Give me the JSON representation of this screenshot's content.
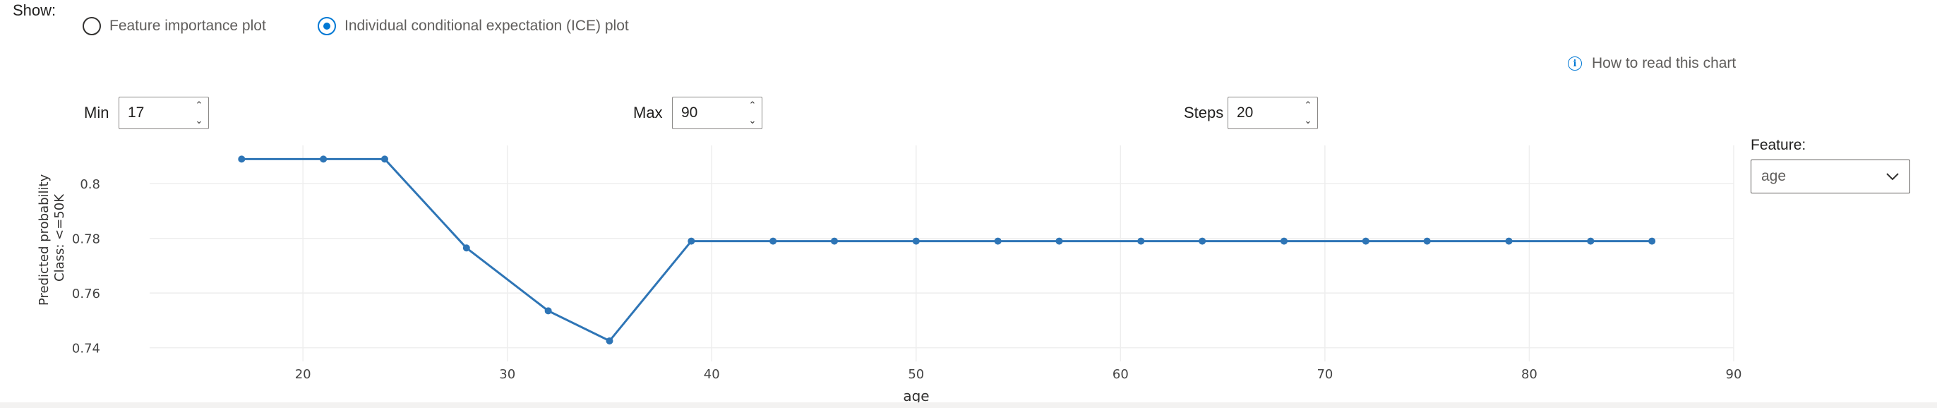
{
  "show": {
    "label": "Show:",
    "options": [
      {
        "label": "Feature importance plot",
        "checked": false
      },
      {
        "label": "Individual conditional expectation (ICE) plot",
        "checked": true
      }
    ]
  },
  "help_link": {
    "label": "How to read this chart",
    "icon": "info-icon"
  },
  "controls": {
    "min": {
      "label": "Min",
      "value": "17"
    },
    "max": {
      "label": "Max",
      "value": "90"
    },
    "steps": {
      "label": "Steps",
      "value": "20"
    }
  },
  "feature": {
    "label": "Feature:",
    "value": "age"
  },
  "colors": {
    "line": "#2e75b6",
    "grid": "#eeeeee",
    "accent": "#0078d4"
  },
  "chart_data": {
    "type": "line",
    "xlabel": "age",
    "ylabel_lines": [
      "Predicted probability",
      "Class: <=50K"
    ],
    "xlim": [
      12.5,
      90
    ],
    "ylim": [
      0.735,
      0.814
    ],
    "xticks": [
      20,
      30,
      40,
      50,
      60,
      70,
      80,
      90
    ],
    "yticks": [
      0.74,
      0.76,
      0.78,
      0.8
    ],
    "ytick_labels": [
      "0.74",
      "0.76",
      "0.78",
      "0.8"
    ],
    "x": [
      17,
      21,
      24,
      28,
      32,
      35,
      39,
      43,
      46,
      50,
      54,
      57,
      61,
      64,
      68,
      72,
      75,
      79,
      83,
      86
    ],
    "y": [
      0.809,
      0.809,
      0.809,
      0.7765,
      0.7535,
      0.7425,
      0.779,
      0.779,
      0.779,
      0.779,
      0.779,
      0.779,
      0.779,
      0.779,
      0.779,
      0.779,
      0.779,
      0.779,
      0.779,
      0.779
    ]
  }
}
